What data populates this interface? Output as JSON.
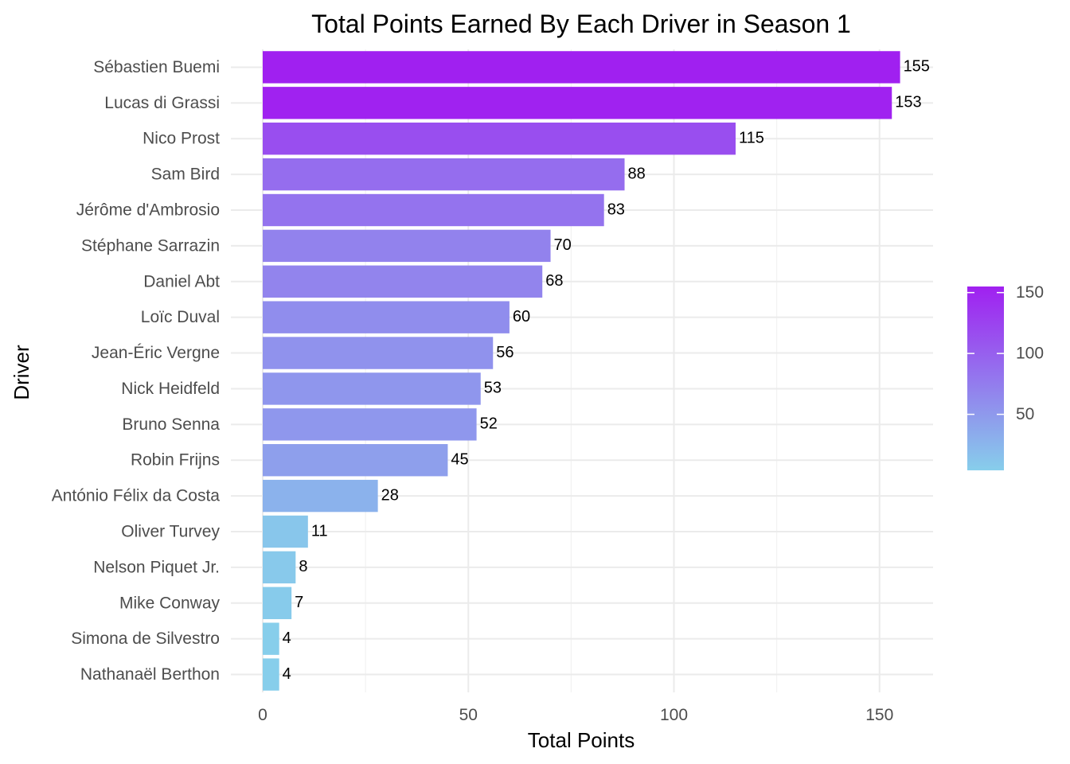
{
  "chart_data": {
    "type": "bar",
    "orientation": "horizontal",
    "title": "Total Points Earned By Each Driver in Season 1",
    "xlabel": "Total Points",
    "ylabel": "Driver",
    "categories": [
      "Sébastien Buemi",
      "Lucas di Grassi",
      "Nico Prost",
      "Sam Bird",
      "Jérôme d'Ambrosio",
      "Stéphane Sarrazin",
      "Daniel Abt",
      "Loïc Duval",
      "Jean-Éric Vergne",
      "Nick Heidfeld",
      "Bruno Senna",
      "Robin Frijns",
      "António Félix da Costa",
      "Oliver Turvey",
      "Nelson Piquet Jr.",
      "Mike Conway",
      "Simona de Silvestro",
      "Nathanaël Berthon"
    ],
    "values": [
      155,
      153,
      115,
      88,
      83,
      70,
      68,
      60,
      56,
      53,
      52,
      45,
      28,
      11,
      8,
      7,
      4,
      4
    ],
    "data_labels": [
      "155",
      "153",
      "115",
      "88",
      "83",
      "70",
      "68",
      "60",
      "56",
      "53",
      "52",
      "45",
      "28",
      "11",
      "8",
      "7",
      "4",
      "4"
    ],
    "xlim": [
      0,
      162
    ],
    "x_ticks": [
      0,
      50,
      100,
      150
    ],
    "x_tick_labels": [
      "0",
      "50",
      "100",
      "150"
    ],
    "grid": true,
    "color_scale": {
      "low": "#87ceeb",
      "high": "#a020f0",
      "domain": [
        4,
        155
      ]
    },
    "legend": {
      "placement": "right",
      "ticks": [
        50,
        100,
        150
      ],
      "tick_labels": [
        "50",
        "100",
        "150"
      ]
    }
  }
}
